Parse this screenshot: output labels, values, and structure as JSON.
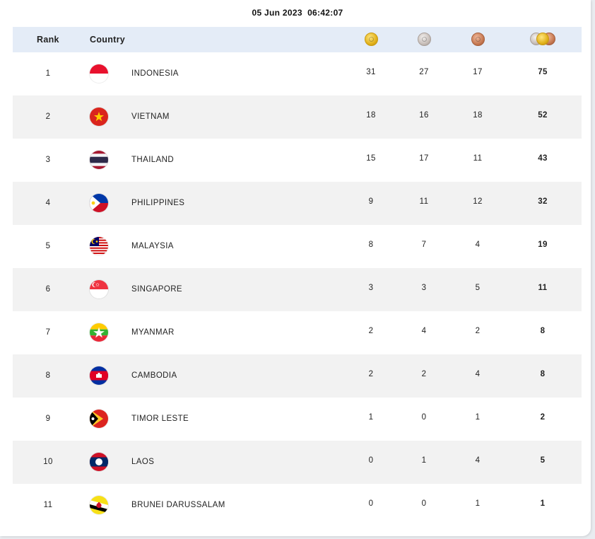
{
  "timestamp": "05 Jun 2023  06:42:07",
  "header": {
    "rank": "Rank",
    "country": "Country"
  },
  "icons": {
    "gold": "gold-medal-icon",
    "silver": "silver-medal-icon",
    "bronze": "bronze-medal-icon",
    "total": "all-medals-icon"
  },
  "rows": [
    {
      "rank": "1",
      "country": "INDONESIA",
      "gold": "31",
      "silver": "27",
      "bronze": "17",
      "total": "75"
    },
    {
      "rank": "2",
      "country": "VIETNAM",
      "gold": "18",
      "silver": "16",
      "bronze": "18",
      "total": "52"
    },
    {
      "rank": "3",
      "country": "THAILAND",
      "gold": "15",
      "silver": "17",
      "bronze": "11",
      "total": "43"
    },
    {
      "rank": "4",
      "country": "PHILIPPINES",
      "gold": "9",
      "silver": "11",
      "bronze": "12",
      "total": "32"
    },
    {
      "rank": "5",
      "country": "MALAYSIA",
      "gold": "8",
      "silver": "7",
      "bronze": "4",
      "total": "19"
    },
    {
      "rank": "6",
      "country": "SINGAPORE",
      "gold": "3",
      "silver": "3",
      "bronze": "5",
      "total": "11"
    },
    {
      "rank": "7",
      "country": "MYANMAR",
      "gold": "2",
      "silver": "4",
      "bronze": "2",
      "total": "8"
    },
    {
      "rank": "8",
      "country": "CAMBODIA",
      "gold": "2",
      "silver": "2",
      "bronze": "4",
      "total": "8"
    },
    {
      "rank": "9",
      "country": "TIMOR LESTE",
      "gold": "1",
      "silver": "0",
      "bronze": "1",
      "total": "2"
    },
    {
      "rank": "10",
      "country": "LAOS",
      "gold": "0",
      "silver": "1",
      "bronze": "4",
      "total": "5"
    },
    {
      "rank": "11",
      "country": "BRUNEI DARUSSALAM",
      "gold": "0",
      "silver": "0",
      "bronze": "1",
      "total": "1"
    }
  ]
}
